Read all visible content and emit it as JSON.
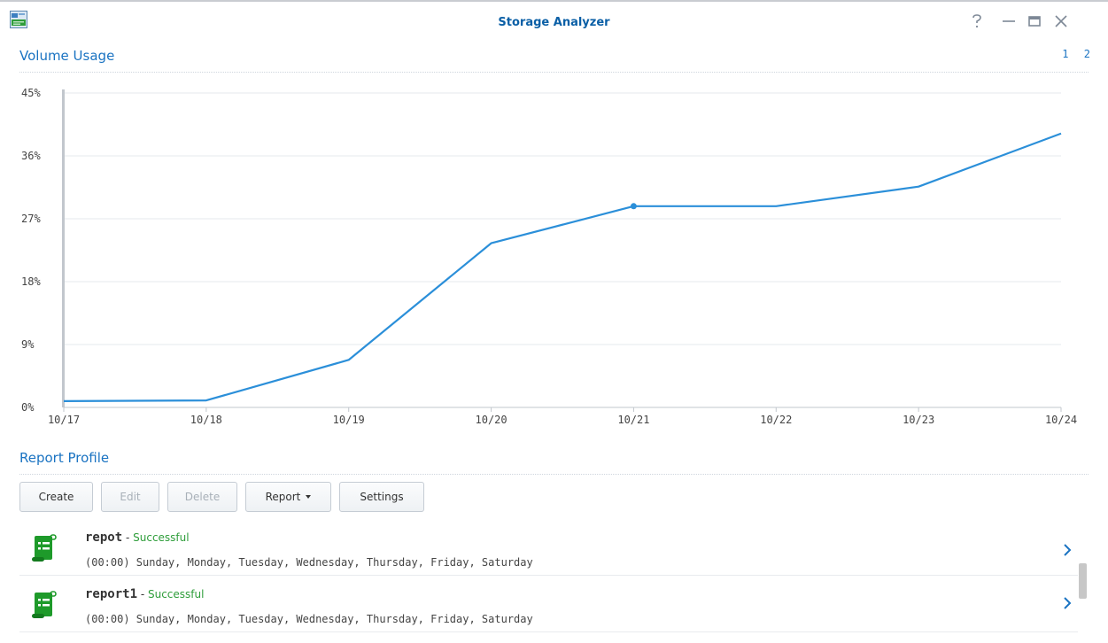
{
  "window": {
    "title": "Storage Analyzer",
    "icon": "storage-analyzer-app-icon",
    "controls": [
      "help-icon",
      "minimize-icon",
      "maximize-icon",
      "close-icon"
    ]
  },
  "volume_usage": {
    "title": "Volume Usage",
    "pages": [
      "1",
      "2"
    ]
  },
  "chart_data": {
    "type": "line",
    "x": [
      "10/17",
      "10/18",
      "10/19",
      "10/20",
      "10/21",
      "10/22",
      "10/23",
      "10/24"
    ],
    "series": [
      {
        "values": [
          0.9,
          1.0,
          6.8,
          23.5,
          28.8,
          28.8,
          31.6,
          39.2
        ]
      }
    ],
    "y_ticks": [
      "0%",
      "9%",
      "18%",
      "27%",
      "36%",
      "45%"
    ],
    "ylim": [
      0,
      45
    ],
    "highlighted_point": "10/21",
    "grid": true,
    "line_color": "#2b8fd9"
  },
  "report_profile": {
    "title": "Report Profile",
    "toolbar": {
      "create": "Create",
      "edit": "Edit",
      "delete": "Delete",
      "report": "Report",
      "settings": "Settings"
    },
    "items": [
      {
        "name": "repot",
        "separator": " - ",
        "status": "Successful",
        "schedule": "(00:00) Sunday, Monday, Tuesday, Wednesday, Thursday, Friday, Saturday"
      },
      {
        "name": "report1",
        "separator": " - ",
        "status": "Successful",
        "schedule": "(00:00) Sunday, Monday, Tuesday, Wednesday, Thursday, Friday, Saturday"
      }
    ]
  },
  "colors": {
    "accent": "#1a73c2",
    "success": "#2e9d3a",
    "report_icon": "#1e9a2a"
  }
}
